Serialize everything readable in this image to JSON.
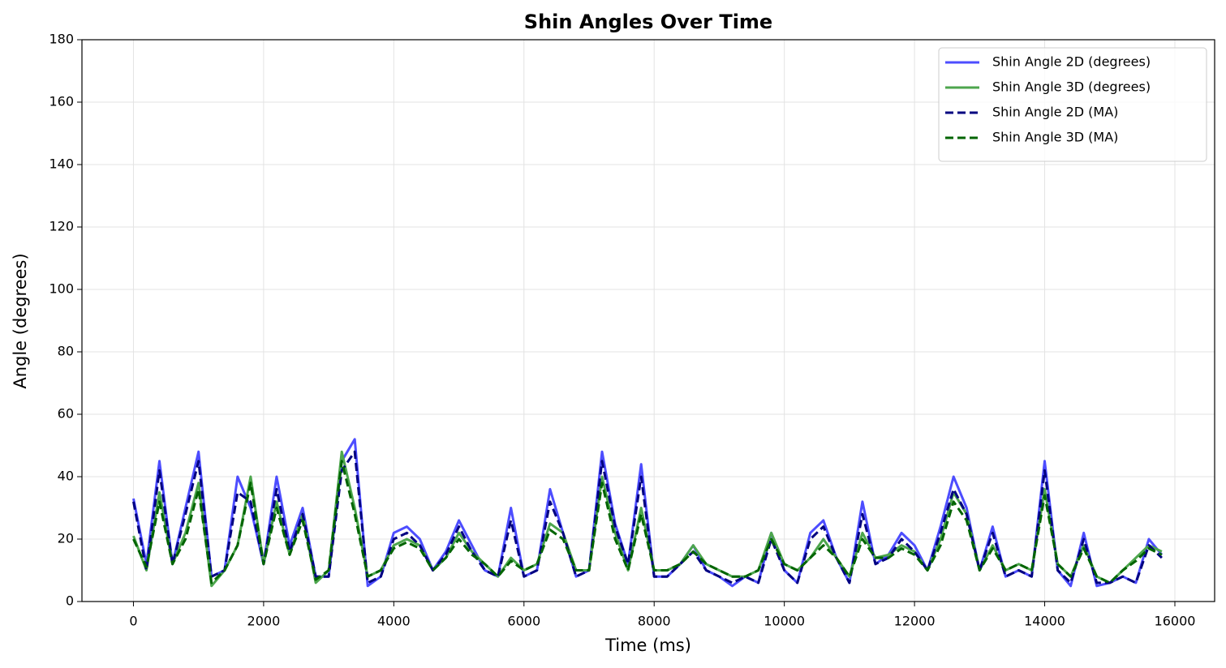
{
  "chart_data": {
    "type": "line",
    "title": "Shin Angles Over Time",
    "x_label": "Time (ms)",
    "y_label": "Angle (degrees)",
    "x": [
      0,
      200,
      400,
      600,
      800,
      1000,
      1200,
      1400,
      1600,
      1800,
      2000,
      2200,
      2400,
      2600,
      2800,
      3000,
      3200,
      3400,
      3600,
      3800,
      4000,
      4200,
      4400,
      4600,
      4800,
      5000,
      5200,
      5400,
      5600,
      5800,
      6000,
      6200,
      6400,
      6600,
      6800,
      7000,
      7200,
      7400,
      7600,
      7800,
      8000,
      8200,
      8400,
      8600,
      8800,
      9000,
      9200,
      9400,
      9600,
      9800,
      10000,
      10200,
      10400,
      10600,
      10800,
      11000,
      11200,
      11400,
      11600,
      11800,
      12000,
      12200,
      12400,
      12600,
      12800,
      13000,
      13200,
      13400,
      13600,
      13800,
      14000,
      14200,
      14400,
      14600,
      14800,
      15000,
      15200,
      15400,
      15600,
      15800
    ],
    "series": [
      {
        "name": "Shin Angle 2D (degrees)",
        "color": "#4d4dff",
        "dashed": false,
        "values": [
          33,
          12,
          45,
          12,
          30,
          48,
          8,
          10,
          40,
          30,
          12,
          40,
          18,
          30,
          8,
          8,
          45,
          52,
          5,
          8,
          22,
          24,
          20,
          10,
          16,
          26,
          18,
          10,
          8,
          30,
          8,
          10,
          36,
          22,
          8,
          10,
          48,
          25,
          12,
          44,
          8,
          8,
          12,
          18,
          10,
          8,
          5,
          8,
          6,
          22,
          10,
          6,
          22,
          26,
          14,
          6,
          32,
          12,
          15,
          22,
          18,
          10,
          24,
          40,
          30,
          10,
          24,
          8,
          10,
          8,
          45,
          10,
          5,
          22,
          5,
          6,
          8,
          6,
          20,
          15
        ]
      },
      {
        "name": "Shin Angle 3D (degrees)",
        "color": "#4da64d",
        "dashed": false,
        "values": [
          21,
          10,
          35,
          12,
          22,
          38,
          5,
          10,
          18,
          40,
          12,
          32,
          15,
          28,
          6,
          10,
          48,
          30,
          8,
          10,
          18,
          20,
          18,
          10,
          14,
          22,
          16,
          12,
          8,
          14,
          10,
          12,
          25,
          22,
          10,
          10,
          40,
          22,
          10,
          30,
          10,
          10,
          12,
          18,
          12,
          10,
          8,
          8,
          10,
          22,
          12,
          10,
          14,
          20,
          14,
          8,
          22,
          14,
          15,
          18,
          16,
          10,
          20,
          35,
          28,
          10,
          18,
          10,
          12,
          10,
          36,
          12,
          8,
          18,
          8,
          6,
          10,
          14,
          18,
          16
        ]
      },
      {
        "name": "Shin Angle 2D (MA)",
        "color": "#000080",
        "dashed": true,
        "values": [
          32,
          10,
          42,
          12,
          28,
          45,
          8,
          10,
          35,
          32,
          12,
          36,
          16,
          28,
          8,
          8,
          42,
          48,
          6,
          8,
          20,
          22,
          18,
          10,
          15,
          24,
          16,
          10,
          8,
          26,
          8,
          10,
          32,
          22,
          8,
          10,
          45,
          24,
          12,
          40,
          8,
          8,
          12,
          16,
          10,
          8,
          6,
          8,
          6,
          20,
          10,
          6,
          20,
          24,
          14,
          6,
          28,
          12,
          14,
          20,
          16,
          10,
          22,
          36,
          28,
          10,
          22,
          8,
          10,
          8,
          42,
          10,
          6,
          20,
          6,
          6,
          8,
          6,
          18,
          14
        ]
      },
      {
        "name": "Shin Angle 3D (MA)",
        "color": "#006400",
        "dashed": true,
        "values": [
          20,
          11,
          32,
          12,
          20,
          36,
          6,
          10,
          18,
          38,
          12,
          30,
          15,
          26,
          7,
          10,
          45,
          28,
          8,
          10,
          17,
          19,
          17,
          10,
          14,
          20,
          15,
          12,
          8,
          13,
          10,
          12,
          23,
          20,
          10,
          10,
          38,
          20,
          10,
          28,
          10,
          10,
          12,
          16,
          12,
          10,
          8,
          8,
          10,
          20,
          12,
          10,
          14,
          18,
          14,
          8,
          20,
          14,
          14,
          17,
          15,
          10,
          18,
          32,
          26,
          10,
          17,
          10,
          12,
          10,
          34,
          12,
          8,
          17,
          8,
          6,
          10,
          13,
          17,
          15
        ]
      }
    ],
    "xlim": [
      -791,
      16611
    ],
    "ylim": [
      0,
      180
    ],
    "xticks": [
      0,
      2000,
      4000,
      6000,
      8000,
      10000,
      12000,
      14000,
      16000
    ],
    "yticks": [
      0,
      20,
      40,
      60,
      80,
      100,
      120,
      140,
      160,
      180
    ],
    "grid": true,
    "legend": "upper right"
  }
}
